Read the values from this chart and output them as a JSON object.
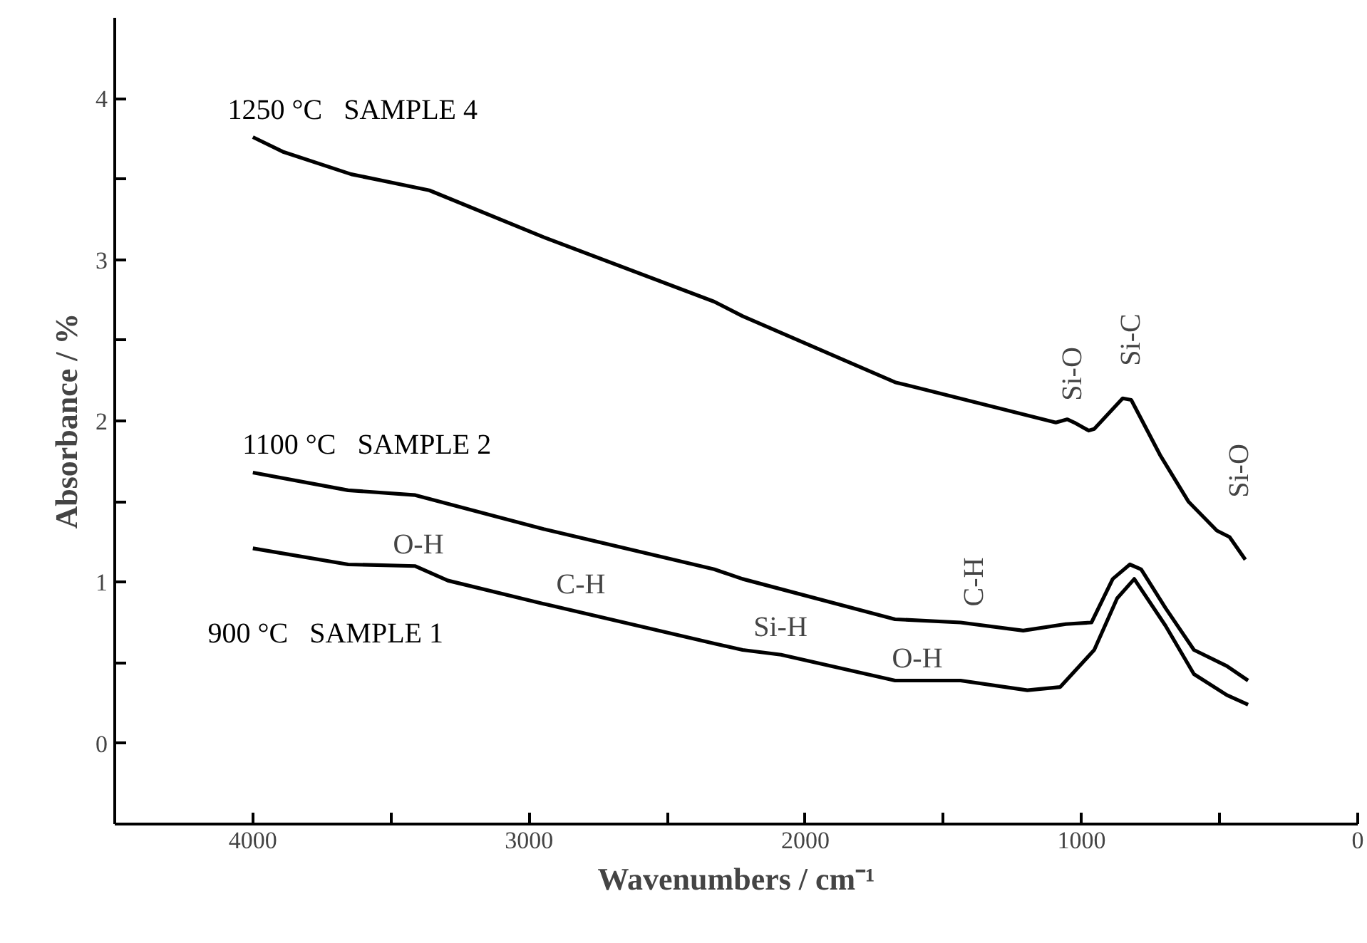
{
  "chart_data": {
    "type": "line",
    "xlabel": "Wavenumbers / cm⁻¹",
    "ylabel": "Absorbance / %",
    "xlim": [
      4500,
      0
    ],
    "ylim": [
      -0.5,
      4.5
    ],
    "xticks": [
      {
        "value": 4500,
        "label": null
      },
      4000,
      {
        "value": 3500,
        "label": null
      },
      3000,
      {
        "value": 2500,
        "label": null
      },
      2000,
      {
        "value": 1500,
        "label": null
      },
      1000,
      {
        "value": 500,
        "label": null
      },
      0
    ],
    "yticks": [
      {
        "value": -0.5,
        "label": null
      },
      0,
      {
        "value": 0.5,
        "label": null
      },
      1,
      {
        "value": 1.5,
        "label": null
      },
      2,
      {
        "value": 2.5,
        "label": null
      },
      3,
      {
        "value": 3.5,
        "label": null
      },
      4
    ],
    "grid": false,
    "legend": false,
    "marker": "none",
    "line_style": "solid",
    "series": [
      {
        "name": "1250 °C   SAMPLE 4",
        "color": "#000000",
        "x": [
          4000,
          3892,
          3644,
          3361,
          2948,
          2330,
          2227,
          1675,
          1557,
          1093,
          1052,
          1026,
          974,
          954,
          851,
          820,
          716,
          613,
          510,
          464,
          407
        ],
        "values": [
          3.76,
          3.67,
          3.53,
          3.43,
          3.14,
          2.74,
          2.65,
          2.24,
          2.19,
          1.99,
          2.01,
          1.99,
          1.94,
          1.95,
          2.14,
          2.13,
          1.79,
          1.5,
          1.32,
          1.28,
          1.14
        ]
      },
      {
        "name": "1100 °C   SAMPLE 2",
        "color": "#000000",
        "x": [
          4000,
          3655,
          3412,
          2948,
          2330,
          2227,
          1675,
          1438,
          1211,
          1057,
          964,
          887,
          825,
          784,
          696,
          593,
          474,
          397
        ],
        "values": [
          1.68,
          1.57,
          1.54,
          1.33,
          1.08,
          1.02,
          0.77,
          0.75,
          0.7,
          0.74,
          0.75,
          1.02,
          1.11,
          1.08,
          0.84,
          0.58,
          0.48,
          0.39
        ]
      },
      {
        "name": "900 °C   SAMPLE 1",
        "color": "#000000",
        "x": [
          4000,
          3655,
          3412,
          3294,
          2933,
          2330,
          2227,
          2088,
          1675,
          1438,
          1196,
          1077,
          954,
          871,
          809,
          696,
          593,
          474,
          397
        ],
        "values": [
          1.21,
          1.11,
          1.1,
          1.01,
          0.86,
          0.62,
          0.58,
          0.55,
          0.39,
          0.39,
          0.33,
          0.35,
          0.58,
          0.9,
          1.02,
          0.73,
          0.43,
          0.3,
          0.24
        ]
      }
    ],
    "annotations": [
      "O-H",
      "C-H",
      "Si-H",
      "O-H",
      "C-H",
      "Si-O",
      "Si-C",
      "Si-O"
    ]
  }
}
